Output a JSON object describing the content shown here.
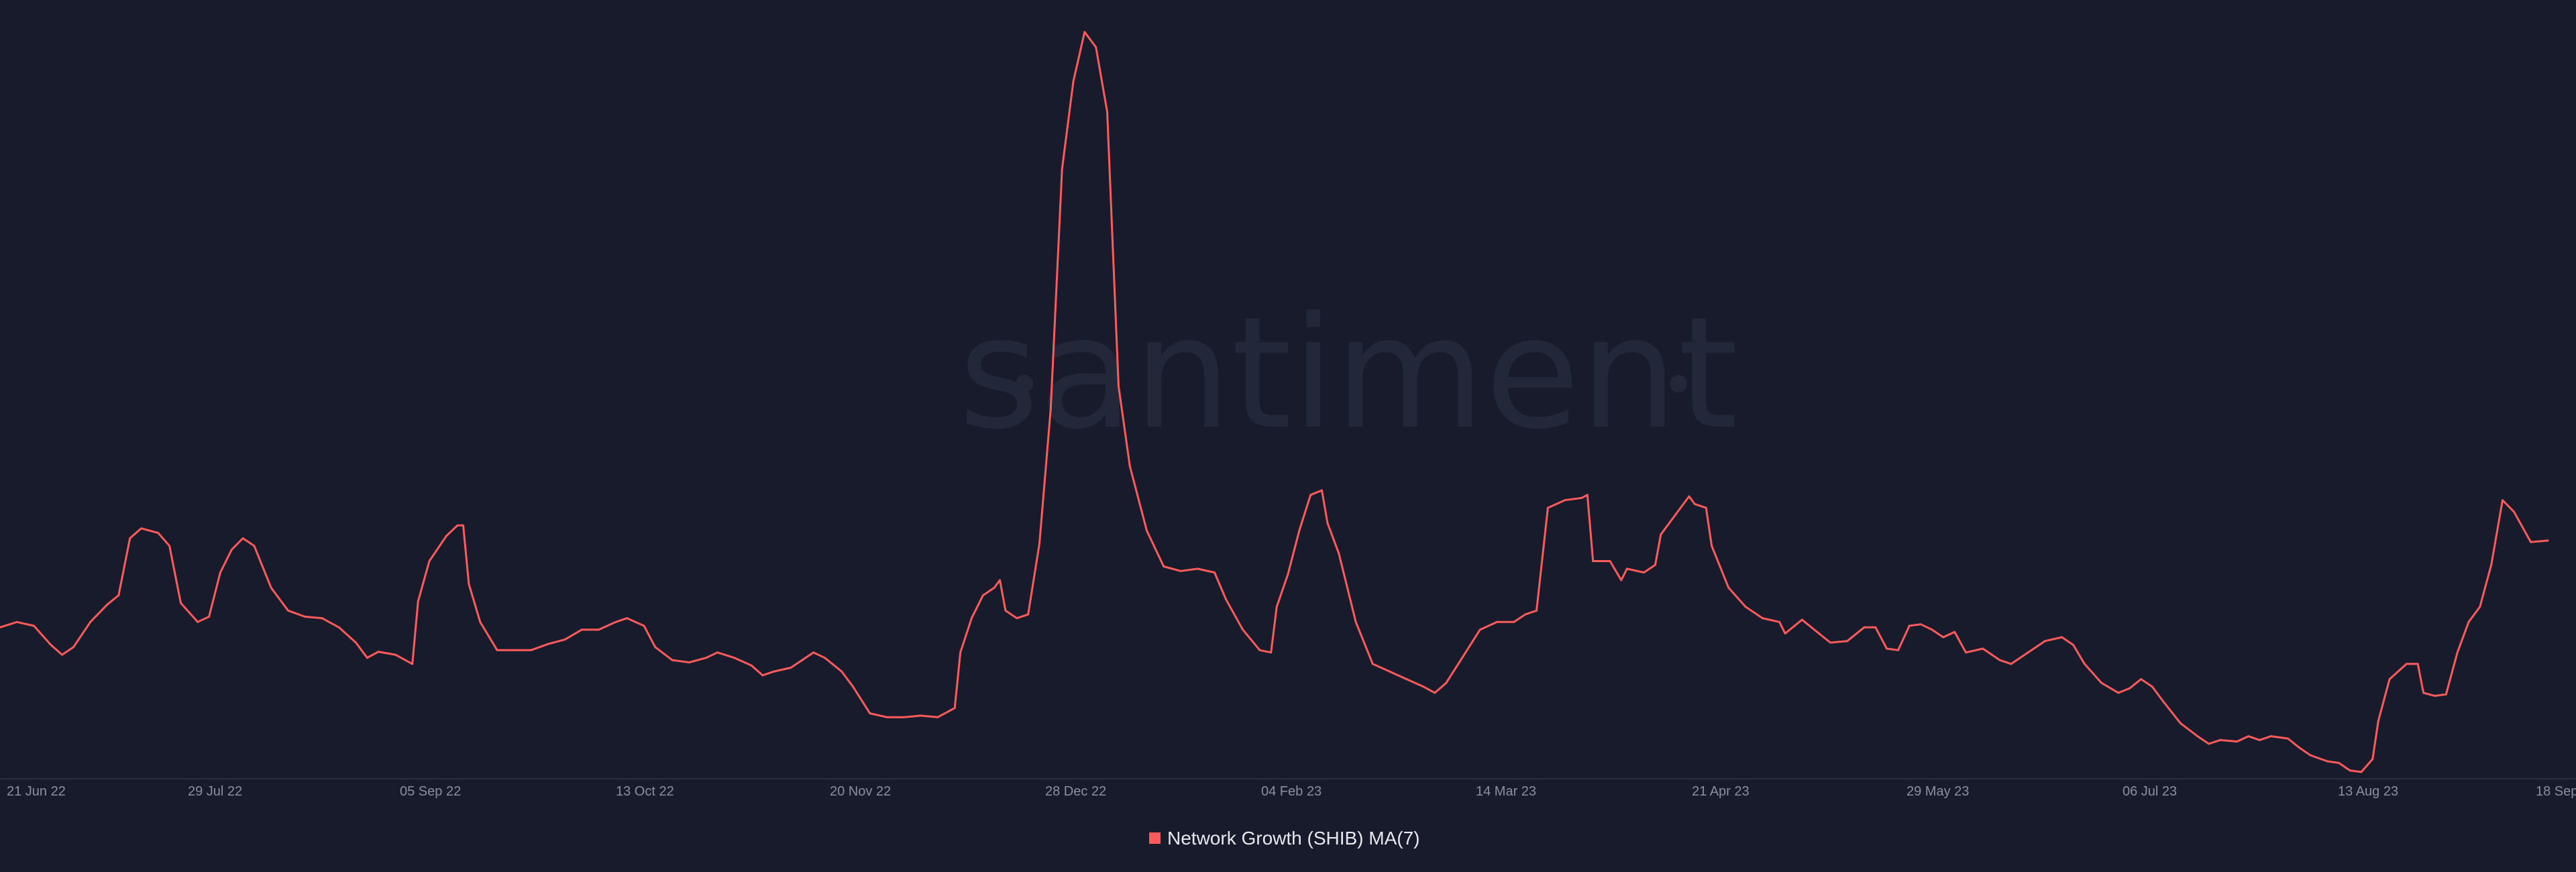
{
  "watermark": "santiment",
  "legend": {
    "label": "Network Growth (SHIB) MA(7)",
    "position": "bottom-center"
  },
  "colors": {
    "background": "#181b2b",
    "series": "#ff5b5b",
    "watermark": "#23273a",
    "tick": "#8a8f9f",
    "legend_text": "#e8e9ee"
  },
  "chart_data": {
    "type": "line",
    "title": "",
    "xlabel": "",
    "ylabel": "",
    "grid": false,
    "x_axis_ticks": [
      "21 Jun 22",
      "29 Jul 22",
      "05 Sep 22",
      "13 Oct 22",
      "20 Nov 22",
      "28 Dec 22",
      "04 Feb 23",
      "14 Mar 23",
      "21 Apr 23",
      "29 May 23",
      "06 Jul 23",
      "13 Aug 23",
      "18 Sep"
    ],
    "x_range": [
      "2022-06-20",
      "2023-09-19"
    ],
    "ylim": [
      0,
      1000
    ],
    "series": [
      {
        "name": "Network Growth (SHIB) MA(7)",
        "points": [
          [
            "2022-06-20",
            198
          ],
          [
            "2022-06-23",
            205
          ],
          [
            "2022-06-26",
            200
          ],
          [
            "2022-06-29",
            175
          ],
          [
            "2022-07-01",
            162
          ],
          [
            "2022-07-03",
            172
          ],
          [
            "2022-07-06",
            205
          ],
          [
            "2022-07-09",
            228
          ],
          [
            "2022-07-11",
            240
          ],
          [
            "2022-07-13",
            315
          ],
          [
            "2022-07-15",
            328
          ],
          [
            "2022-07-18",
            322
          ],
          [
            "2022-07-20",
            305
          ],
          [
            "2022-07-22",
            230
          ],
          [
            "2022-07-25",
            205
          ],
          [
            "2022-07-27",
            212
          ],
          [
            "2022-07-29",
            270
          ],
          [
            "2022-07-31",
            300
          ],
          [
            "2022-08-02",
            315
          ],
          [
            "2022-08-04",
            305
          ],
          [
            "2022-08-07",
            250
          ],
          [
            "2022-08-10",
            220
          ],
          [
            "2022-08-13",
            212
          ],
          [
            "2022-08-16",
            210
          ],
          [
            "2022-08-19",
            198
          ],
          [
            "2022-08-22",
            178
          ],
          [
            "2022-08-24",
            158
          ],
          [
            "2022-08-26",
            166
          ],
          [
            "2022-08-29",
            162
          ],
          [
            "2022-09-01",
            150
          ],
          [
            "2022-09-02",
            232
          ],
          [
            "2022-09-04",
            285
          ],
          [
            "2022-09-07",
            318
          ],
          [
            "2022-09-09",
            332
          ],
          [
            "2022-09-10",
            332
          ],
          [
            "2022-09-11",
            255
          ],
          [
            "2022-09-13",
            205
          ],
          [
            "2022-09-16",
            168
          ],
          [
            "2022-09-19",
            168
          ],
          [
            "2022-09-22",
            168
          ],
          [
            "2022-09-25",
            176
          ],
          [
            "2022-09-28",
            182
          ],
          [
            "2022-10-01",
            195
          ],
          [
            "2022-10-04",
            195
          ],
          [
            "2022-10-07",
            205
          ],
          [
            "2022-10-09",
            210
          ],
          [
            "2022-10-12",
            200
          ],
          [
            "2022-10-14",
            172
          ],
          [
            "2022-10-17",
            155
          ],
          [
            "2022-10-20",
            152
          ],
          [
            "2022-10-23",
            158
          ],
          [
            "2022-10-25",
            165
          ],
          [
            "2022-10-28",
            158
          ],
          [
            "2022-10-31",
            148
          ],
          [
            "2022-11-02",
            135
          ],
          [
            "2022-11-04",
            140
          ],
          [
            "2022-11-07",
            145
          ],
          [
            "2022-11-09",
            155
          ],
          [
            "2022-11-11",
            165
          ],
          [
            "2022-11-13",
            158
          ],
          [
            "2022-11-16",
            140
          ],
          [
            "2022-11-18",
            120
          ],
          [
            "2022-11-21",
            85
          ],
          [
            "2022-11-24",
            80
          ],
          [
            "2022-11-27",
            80
          ],
          [
            "2022-11-30",
            82
          ],
          [
            "2022-12-03",
            80
          ],
          [
            "2022-12-06",
            92
          ],
          [
            "2022-12-07",
            165
          ],
          [
            "2022-12-09",
            210
          ],
          [
            "2022-12-11",
            240
          ],
          [
            "2022-12-13",
            250
          ],
          [
            "2022-12-14",
            260
          ],
          [
            "2022-12-15",
            220
          ],
          [
            "2022-12-17",
            210
          ],
          [
            "2022-12-19",
            215
          ],
          [
            "2022-12-21",
            308
          ],
          [
            "2022-12-23",
            485
          ],
          [
            "2022-12-25",
            800
          ],
          [
            "2022-12-27",
            915
          ],
          [
            "2022-12-29",
            980
          ],
          [
            "2022-12-31",
            960
          ],
          [
            "2023-01-02",
            875
          ],
          [
            "2023-01-04",
            515
          ],
          [
            "2023-01-06",
            410
          ],
          [
            "2023-01-09",
            325
          ],
          [
            "2023-01-12",
            278
          ],
          [
            "2023-01-15",
            272
          ],
          [
            "2023-01-18",
            275
          ],
          [
            "2023-01-21",
            270
          ],
          [
            "2023-01-23",
            235
          ],
          [
            "2023-01-26",
            195
          ],
          [
            "2023-01-29",
            168
          ],
          [
            "2023-01-31",
            165
          ],
          [
            "2023-02-01",
            225
          ],
          [
            "2023-02-03",
            268
          ],
          [
            "2023-02-05",
            325
          ],
          [
            "2023-02-07",
            372
          ],
          [
            "2023-02-09",
            378
          ],
          [
            "2023-02-10",
            335
          ],
          [
            "2023-02-12",
            295
          ],
          [
            "2023-02-15",
            205
          ],
          [
            "2023-02-18",
            150
          ],
          [
            "2023-02-21",
            140
          ],
          [
            "2023-02-24",
            130
          ],
          [
            "2023-02-27",
            120
          ],
          [
            "2023-03-01",
            112
          ],
          [
            "2023-03-03",
            125
          ],
          [
            "2023-03-06",
            160
          ],
          [
            "2023-03-09",
            195
          ],
          [
            "2023-03-12",
            205
          ],
          [
            "2023-03-15",
            205
          ],
          [
            "2023-03-17",
            215
          ],
          [
            "2023-03-19",
            220
          ],
          [
            "2023-03-21",
            355
          ],
          [
            "2023-03-24",
            365
          ],
          [
            "2023-03-27",
            368
          ],
          [
            "2023-03-28",
            372
          ],
          [
            "2023-03-29",
            285
          ],
          [
            "2023-04-01",
            285
          ],
          [
            "2023-04-03",
            260
          ],
          [
            "2023-04-04",
            275
          ],
          [
            "2023-04-07",
            270
          ],
          [
            "2023-04-09",
            280
          ],
          [
            "2023-04-10",
            320
          ],
          [
            "2023-04-12",
            340
          ],
          [
            "2023-04-15",
            370
          ],
          [
            "2023-04-16",
            360
          ],
          [
            "2023-04-18",
            355
          ],
          [
            "2023-04-19",
            305
          ],
          [
            "2023-04-22",
            250
          ],
          [
            "2023-04-25",
            225
          ],
          [
            "2023-04-28",
            210
          ],
          [
            "2023-05-01",
            205
          ],
          [
            "2023-05-02",
            190
          ],
          [
            "2023-05-05",
            208
          ],
          [
            "2023-05-08",
            190
          ],
          [
            "2023-05-10",
            178
          ],
          [
            "2023-05-13",
            180
          ],
          [
            "2023-05-16",
            198
          ],
          [
            "2023-05-18",
            198
          ],
          [
            "2023-05-20",
            170
          ],
          [
            "2023-05-22",
            168
          ],
          [
            "2023-05-24",
            200
          ],
          [
            "2023-05-26",
            202
          ],
          [
            "2023-05-28",
            195
          ],
          [
            "2023-05-30",
            185
          ],
          [
            "2023-06-01",
            192
          ],
          [
            "2023-06-03",
            165
          ],
          [
            "2023-06-06",
            170
          ],
          [
            "2023-06-09",
            155
          ],
          [
            "2023-06-11",
            150
          ],
          [
            "2023-06-14",
            165
          ],
          [
            "2023-06-17",
            180
          ],
          [
            "2023-06-20",
            185
          ],
          [
            "2023-06-22",
            175
          ],
          [
            "2023-06-24",
            150
          ],
          [
            "2023-06-27",
            125
          ],
          [
            "2023-06-30",
            112
          ],
          [
            "2023-07-02",
            118
          ],
          [
            "2023-07-04",
            130
          ],
          [
            "2023-07-06",
            120
          ],
          [
            "2023-07-08",
            100
          ],
          [
            "2023-07-11",
            72
          ],
          [
            "2023-07-14",
            55
          ],
          [
            "2023-07-16",
            45
          ],
          [
            "2023-07-18",
            50
          ],
          [
            "2023-07-21",
            48
          ],
          [
            "2023-07-23",
            55
          ],
          [
            "2023-07-25",
            50
          ],
          [
            "2023-07-27",
            55
          ],
          [
            "2023-07-30",
            52
          ],
          [
            "2023-08-01",
            40
          ],
          [
            "2023-08-03",
            30
          ],
          [
            "2023-08-06",
            22
          ],
          [
            "2023-08-08",
            20
          ],
          [
            "2023-08-10",
            10
          ],
          [
            "2023-08-12",
            8
          ],
          [
            "2023-08-14",
            25
          ],
          [
            "2023-08-15",
            75
          ],
          [
            "2023-08-17",
            130
          ],
          [
            "2023-08-20",
            150
          ],
          [
            "2023-08-22",
            150
          ],
          [
            "2023-08-23",
            112
          ],
          [
            "2023-08-25",
            108
          ],
          [
            "2023-08-27",
            110
          ],
          [
            "2023-08-29",
            165
          ],
          [
            "2023-08-31",
            205
          ],
          [
            "2023-09-02",
            225
          ],
          [
            "2023-09-04",
            280
          ],
          [
            "2023-09-06",
            365
          ],
          [
            "2023-09-08",
            350
          ],
          [
            "2023-09-11",
            310
          ],
          [
            "2023-09-14",
            312
          ]
        ]
      }
    ]
  }
}
